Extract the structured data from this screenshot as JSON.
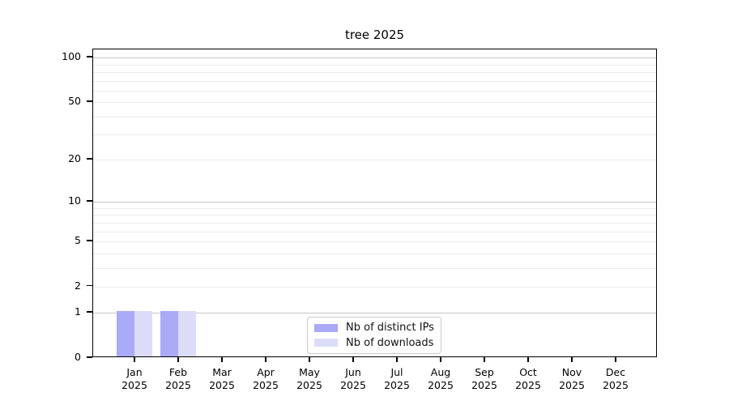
{
  "chart_data": {
    "type": "bar",
    "title": "tree 2025",
    "categories": [
      {
        "month": "Jan",
        "year": "2025"
      },
      {
        "month": "Feb",
        "year": "2025"
      },
      {
        "month": "Mar",
        "year": "2025"
      },
      {
        "month": "Apr",
        "year": "2025"
      },
      {
        "month": "May",
        "year": "2025"
      },
      {
        "month": "Jun",
        "year": "2025"
      },
      {
        "month": "Jul",
        "year": "2025"
      },
      {
        "month": "Aug",
        "year": "2025"
      },
      {
        "month": "Sep",
        "year": "2025"
      },
      {
        "month": "Oct",
        "year": "2025"
      },
      {
        "month": "Nov",
        "year": "2025"
      },
      {
        "month": "Dec",
        "year": "2025"
      }
    ],
    "series": [
      {
        "name": "Nb of distinct IPs",
        "color": "#aaaaf7",
        "values": [
          1,
          1,
          0,
          0,
          0,
          0,
          0,
          0,
          0,
          0,
          0,
          0
        ]
      },
      {
        "name": "Nb of downloads",
        "color": "#dcdcf9",
        "values": [
          1,
          1,
          0,
          0,
          0,
          0,
          0,
          0,
          0,
          0,
          0,
          0
        ]
      }
    ],
    "y_axis": {
      "scale": "log10(1+v)",
      "tick_labels": [
        "0",
        "1",
        "2",
        "5",
        "10",
        "20",
        "50",
        "100"
      ],
      "tick_values": [
        0,
        1,
        2,
        5,
        10,
        20,
        50,
        100
      ],
      "major_gridlines": [
        1,
        10,
        100
      ],
      "minor_gridlines": [
        2,
        3,
        4,
        5,
        6,
        7,
        8,
        9,
        20,
        30,
        40,
        50,
        60,
        70,
        80,
        90
      ],
      "ylim": [
        0,
        100
      ]
    },
    "legend_position": "bottom-center",
    "grid": "horizontal",
    "colors": {
      "distinct_ips": "#aaaaf7",
      "downloads": "#dcdcf9",
      "major_grid": "#c6c6c6",
      "minor_grid": "#ebebeb",
      "spine": "#000000"
    }
  }
}
